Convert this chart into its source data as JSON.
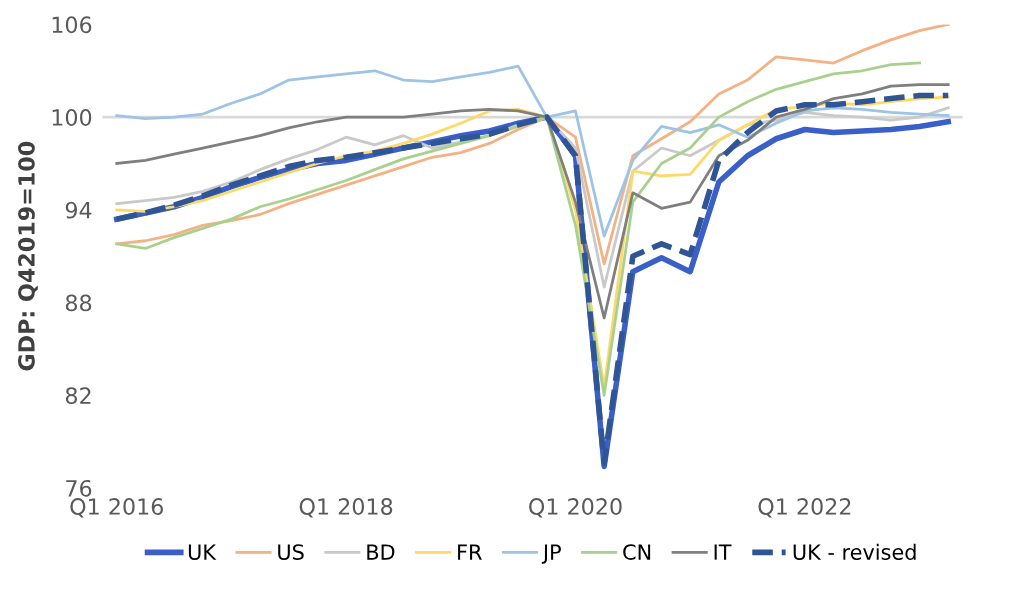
{
  "chart_data": {
    "type": "line",
    "ylabel": "GDP: Q42019=100",
    "categories": [
      "Q1 2016",
      null,
      null,
      null,
      null,
      null,
      null,
      null,
      "Q1 2018",
      null,
      null,
      null,
      null,
      null,
      null,
      null,
      "Q1 2020",
      null,
      null,
      null,
      null,
      null,
      null,
      null,
      "Q1 2022",
      null,
      null,
      null,
      null,
      null
    ],
    "ylim": [
      76,
      106
    ],
    "yticks": [
      76,
      82,
      88,
      94,
      100,
      106
    ],
    "grid": false,
    "legend": "bottom",
    "marker": "none",
    "ref_lines": [
      {
        "axis": "y",
        "value": 100,
        "color": "#d9d9d9"
      }
    ],
    "series": [
      {
        "name": "UK",
        "color": "#3a5fc8",
        "line_style": "solid",
        "values": [
          93.4,
          93.8,
          94.2,
          94.8,
          95.5,
          96.1,
          96.6,
          97.0,
          97.2,
          97.6,
          98.0,
          98.4,
          98.8,
          99.1,
          99.6,
          100,
          97.5,
          77.4,
          90.0,
          90.9,
          90.0,
          95.8,
          97.5,
          98.6,
          99.2,
          99.0,
          99.1,
          99.2,
          99.4,
          99.7
        ]
      },
      {
        "name": "US",
        "color": "#f4b183",
        "line_style": "solid",
        "values": [
          91.8,
          92.0,
          92.4,
          93.0,
          93.3,
          93.7,
          94.4,
          95.0,
          95.6,
          96.2,
          96.8,
          97.4,
          97.7,
          98.3,
          99.2,
          100,
          98.7,
          90.5,
          97.5,
          98.6,
          99.7,
          101.5,
          102.4,
          103.9,
          103.7,
          103.5,
          104.3,
          105.0,
          105.6,
          106.0
        ]
      },
      {
        "name": "BD",
        "color": "#c9c9c9",
        "line_style": "solid",
        "values": [
          94.4,
          94.6,
          94.8,
          95.2,
          95.8,
          96.6,
          97.3,
          97.9,
          98.7,
          98.2,
          98.8,
          98.0,
          98.4,
          98.8,
          99.5,
          100,
          98.0,
          89.0,
          96.5,
          98.0,
          97.5,
          98.5,
          99.5,
          99.8,
          100.3,
          100.1,
          100.0,
          99.8,
          100.0,
          100.6
        ]
      },
      {
        "name": "FR",
        "color": "#ffd966",
        "line_style": "solid",
        "values": [
          94.0,
          93.9,
          94.2,
          94.6,
          95.2,
          95.8,
          96.4,
          97.0,
          97.5,
          97.8,
          98.3,
          98.9,
          99.6,
          100.4,
          100.5,
          100,
          94.0,
          82.5,
          96.5,
          96.2,
          96.3,
          98.5,
          99.5,
          100.5,
          100.7,
          100.9,
          100.8,
          101.0,
          101.2,
          101.3
        ]
      },
      {
        "name": "JP",
        "color": "#9dc3e6",
        "line_style": "solid",
        "values": [
          100.1,
          99.9,
          100.0,
          100.2,
          100.9,
          101.5,
          102.4,
          102.6,
          102.8,
          103.0,
          102.4,
          102.3,
          102.6,
          102.9,
          103.3,
          100,
          100.4,
          92.3,
          97.2,
          99.4,
          99.0,
          99.5,
          98.7,
          99.6,
          100.4,
          100.6,
          100.5,
          100.3,
          100.2,
          100.1
        ]
      },
      {
        "name": "CN",
        "color": "#a9d18e",
        "line_style": "solid",
        "values": [
          91.8,
          91.5,
          92.2,
          92.8,
          93.4,
          94.2,
          94.7,
          95.3,
          95.9,
          96.6,
          97.3,
          97.8,
          98.3,
          98.8,
          99.4,
          100,
          93.0,
          82.0,
          94.5,
          97.0,
          98.0,
          100.0,
          101.0,
          101.8,
          102.3,
          102.8,
          103.0,
          103.4,
          103.5,
          null
        ]
      },
      {
        "name": "IT",
        "color": "#7f7f7f",
        "line_style": "solid",
        "values": [
          97.0,
          97.2,
          97.6,
          98.0,
          98.4,
          98.8,
          99.3,
          99.7,
          100.0,
          100.0,
          100.0,
          100.2,
          100.4,
          100.5,
          100.4,
          100,
          94.5,
          87.0,
          95.1,
          94.1,
          94.5,
          97.5,
          98.5,
          100.0,
          100.5,
          101.2,
          101.5,
          102.0,
          102.1,
          102.1
        ]
      },
      {
        "name": "UK - revised",
        "color": "#2f5597",
        "line_style": "dashed",
        "values": [
          93.4,
          93.8,
          94.3,
          94.9,
          95.6,
          96.2,
          96.8,
          97.2,
          97.4,
          97.7,
          98.0,
          98.3,
          98.6,
          98.9,
          99.5,
          100,
          97.5,
          77.6,
          91.0,
          91.8,
          91.1,
          97.2,
          99.0,
          100.4,
          100.8,
          100.8,
          101.0,
          101.2,
          101.4,
          101.4
        ]
      }
    ]
  }
}
